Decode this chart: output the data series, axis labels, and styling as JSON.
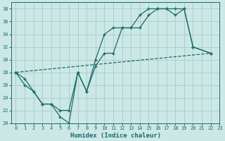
{
  "xlabel": "Humidex (Indice chaleur)",
  "background_color": "#cce8e6",
  "grid_color": "#aacfcc",
  "line_color": "#1a6b6b",
  "xlim": [
    -0.5,
    23
  ],
  "ylim": [
    20,
    39
  ],
  "xticks": [
    0,
    1,
    2,
    3,
    4,
    5,
    6,
    7,
    8,
    9,
    10,
    11,
    12,
    13,
    14,
    15,
    16,
    17,
    18,
    19,
    20,
    21,
    22,
    23
  ],
  "yticks": [
    20,
    22,
    24,
    26,
    28,
    30,
    32,
    34,
    36,
    38
  ],
  "line1_x": [
    0,
    1,
    2,
    3,
    4,
    5,
    6,
    7,
    8,
    9,
    10,
    11,
    12,
    13,
    14,
    15,
    16,
    17,
    18,
    19,
    20,
    22
  ],
  "line1_y": [
    28,
    27,
    25,
    23,
    23,
    21,
    20,
    28,
    25,
    30,
    34,
    35,
    35,
    35,
    37,
    38,
    38,
    38,
    38,
    38,
    32,
    31
  ],
  "line2_x": [
    0,
    1,
    2,
    3,
    4,
    5,
    6,
    7,
    8,
    9,
    10,
    11,
    12,
    13,
    14,
    15,
    16,
    17,
    18,
    19,
    20,
    22
  ],
  "line2_y": [
    28,
    26,
    25,
    23,
    23,
    22,
    22,
    28,
    25,
    29,
    31,
    31,
    35,
    35,
    35,
    37,
    38,
    38,
    37,
    38,
    32,
    31
  ],
  "line3_x": [
    0,
    22
  ],
  "line3_y": [
    28,
    31
  ]
}
